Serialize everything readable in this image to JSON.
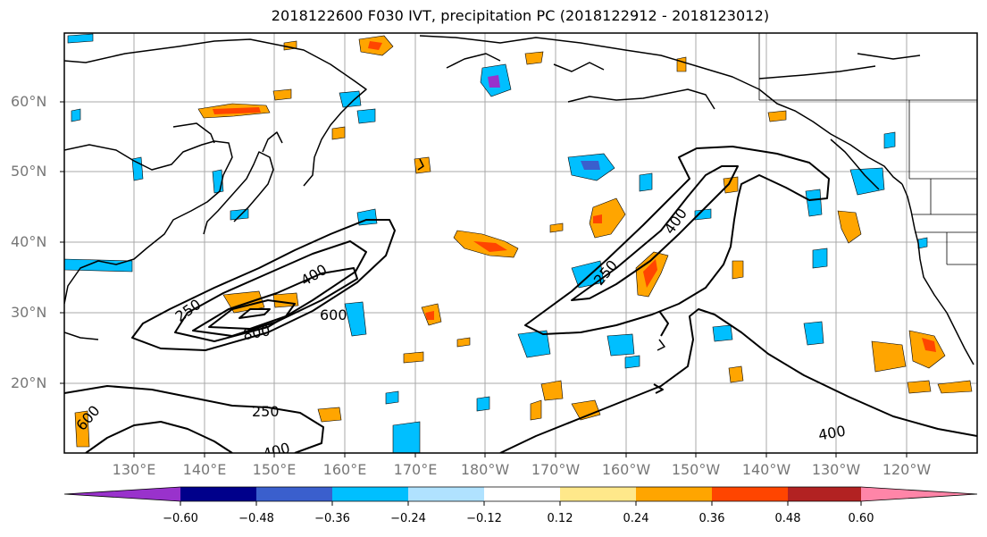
{
  "title": "2018122600 F030 IVT, precipitation PC (2018122912 - 2018123012)",
  "lat_labels": [
    "60°N",
    "50°N",
    "40°N",
    "30°N",
    "20°N"
  ],
  "lon_labels": [
    "130°E",
    "140°E",
    "150°E",
    "160°E",
    "170°E",
    "180°W",
    "170°W",
    "160°W",
    "150°W",
    "140°W",
    "130°W",
    "120°W"
  ],
  "contour_labels": [
    "250",
    "400",
    "600",
    "800",
    "250",
    "600",
    "400",
    "400",
    "250",
    "400",
    "250"
  ],
  "colorbar": {
    "ticks": [
      "−0.60",
      "−0.48",
      "−0.36",
      "−0.24",
      "−0.12",
      "0.12",
      "0.24",
      "0.36",
      "0.48",
      "0.60"
    ],
    "colors": [
      "#9932cc",
      "#00008b",
      "#3a5fcd",
      "#00bfff",
      "#b0e2ff",
      "#ffffff",
      "#ffe88a",
      "#ffa500",
      "#ff4500",
      "#b22222",
      "#ff85a8"
    ]
  }
}
